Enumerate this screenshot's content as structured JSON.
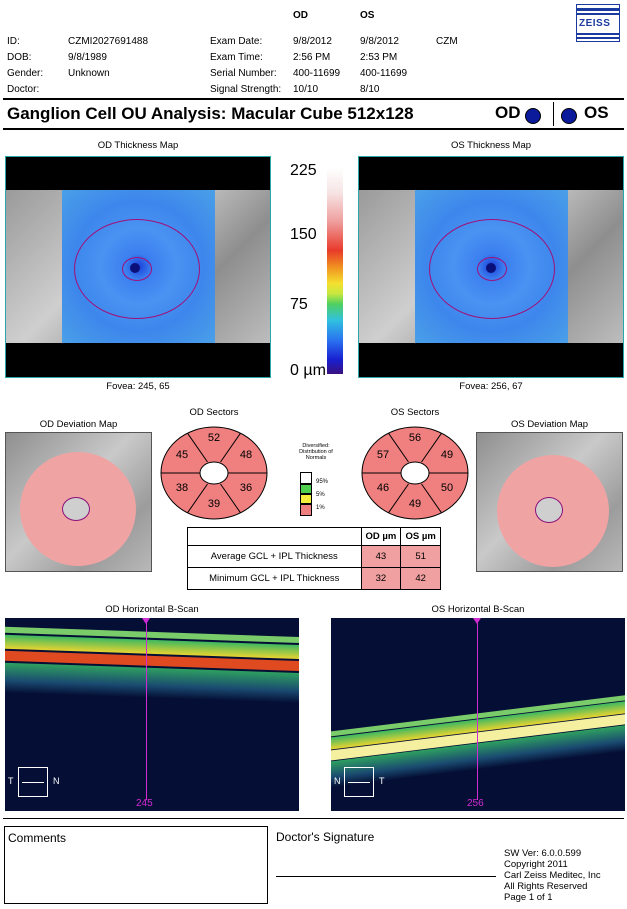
{
  "header": {
    "col_od": "OD",
    "col_os": "OS",
    "logo": "ZEISS",
    "fields": [
      {
        "label": "ID:",
        "value": "CZMI2027691488"
      },
      {
        "label": "DOB:",
        "value": "9/8/1989"
      },
      {
        "label": "Gender:",
        "value": "Unknown"
      },
      {
        "label": "Doctor:",
        "value": ""
      }
    ],
    "exam": [
      {
        "label": "Exam Date:",
        "od": "9/8/2012",
        "os": "9/8/2012",
        "extra": "CZM"
      },
      {
        "label": "Exam Time:",
        "od": "2:56 PM",
        "os": "2:53 PM",
        "extra": ""
      },
      {
        "label": "Serial Number:",
        "od": "400-11699",
        "os": "400-11699",
        "extra": ""
      },
      {
        "label": "Signal Strength:",
        "od": "10/10",
        "os": "8/10",
        "extra": ""
      }
    ]
  },
  "title": {
    "text": "Ganglion Cell OU Analysis: Macular Cube 512x128",
    "od": "OD",
    "os": "OS"
  },
  "thickness": {
    "od_title": "OD Thickness Map",
    "os_title": "OS Thickness Map",
    "od_fovea": "Fovea: 245, 65",
    "os_fovea": "Fovea: 256, 67",
    "scale": [
      "225",
      "150",
      "75",
      "0 µm"
    ]
  },
  "deviation": {
    "od_title": "OD Deviation Map",
    "os_title": "OS Deviation Map"
  },
  "sectors": {
    "od_title": "OD Sectors",
    "os_title": "OS Sectors",
    "od": {
      "top": "52",
      "top_left": "45",
      "top_right": "48",
      "bottom_left": "38",
      "bottom_right": "36",
      "bottom": "39"
    },
    "os": {
      "top": "56",
      "top_left": "57",
      "top_right": "49",
      "bottom_left": "46",
      "bottom_right": "50",
      "bottom": "49"
    }
  },
  "legend": {
    "title": "Diversified: Distribution of Normals",
    "items": [
      {
        "label": "95%",
        "color": "#ffffff"
      },
      {
        "label": "5%",
        "color": "#f6ee3c"
      },
      {
        "label": "1%",
        "color": "#f08080"
      }
    ],
    "green": "#4fd04f"
  },
  "gcl_table": {
    "headers": [
      "",
      "OD µm",
      "OS µm"
    ],
    "rows": [
      {
        "name": "Average GCL + IPL Thickness",
        "od": "43",
        "os": "51"
      },
      {
        "name": "Minimum GCL + IPL Thickness",
        "od": "32",
        "os": "42"
      }
    ]
  },
  "bscan": {
    "od_title": "OD Horizontal B-Scan",
    "os_title": "OS Horizontal B-Scan",
    "od_pos": "245",
    "os_pos": "256",
    "od_left": "T",
    "od_right": "N",
    "os_left": "N",
    "os_right": "T"
  },
  "footer": {
    "comments": "Comments",
    "signature": "Doctor's Signature",
    "sw": [
      "SW Ver: 6.0.0.599",
      "Copyright 2011",
      "Carl Zeiss Meditec, Inc",
      "All Rights Reserved",
      "Page 1 of 1"
    ]
  },
  "colors": {
    "accent": "#0a1a9a",
    "marker": "#d32bd3",
    "sector_fill": "#f08080",
    "abnormal": "#f0a0a0"
  }
}
